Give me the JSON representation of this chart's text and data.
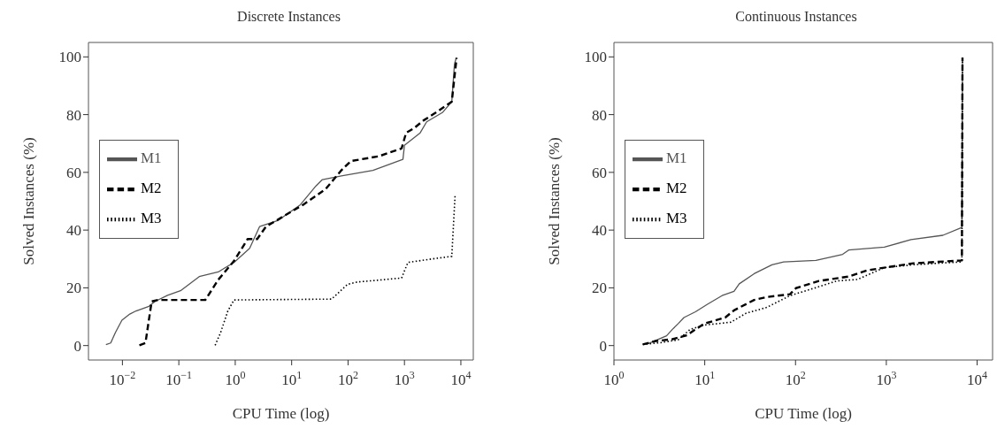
{
  "chart_data": [
    {
      "type": "line",
      "title": "Discrete Instances",
      "xlabel": "CPU Time (log)",
      "ylabel": "Solved Instances (%)",
      "log": "x",
      "grid": false,
      "legend": "left",
      "marker": "none",
      "xlim": [
        0.0025,
        16600
      ],
      "xticks": [
        {
          "value": 0.01,
          "label": "10$^{−2}$"
        },
        {
          "value": 0.1,
          "label": "10$^{−1}$"
        },
        {
          "value": 1,
          "label": "10$^{0}$"
        },
        {
          "value": 10,
          "label": "10$^{1}$"
        },
        {
          "value": 100,
          "label": "10$^{2}$"
        },
        {
          "value": 1000,
          "label": "10$^{3}$"
        },
        {
          "value": 10000,
          "label": "10$^{4}$"
        }
      ],
      "ylim": [
        -5,
        105
      ],
      "yticks": [
        0,
        20,
        40,
        60,
        80,
        100
      ],
      "series": [
        {
          "name": "M1",
          "color": "#555555",
          "line_style": "solid",
          "x": [
            0.0051,
            0.0062,
            0.0075,
            0.0098,
            0.0135,
            0.0174,
            0.0295,
            0.038,
            0.063,
            0.107,
            0.23,
            0.5,
            0.95,
            1.8,
            2.7,
            5.8,
            14.3,
            27,
            35,
            76,
            276,
            940,
            1000,
            1900,
            2470,
            4700,
            6900,
            7700,
            8300
          ],
          "values": [
            0.3,
            0.9,
            4.5,
            8.8,
            10.9,
            12,
            13.6,
            15.3,
            17.4,
            19,
            23.9,
            25.5,
            28.8,
            33.7,
            41.2,
            43.4,
            48.8,
            55.3,
            57.5,
            58.8,
            60.7,
            64.5,
            69.4,
            73.7,
            77.5,
            80.7,
            84.5,
            97.5,
            99.7
          ]
        },
        {
          "name": "M2",
          "color": "#000000",
          "line_style": "dashed",
          "x": [
            0.02,
            0.0256,
            0.033,
            0.043,
            0.295,
            0.5,
            0.95,
            1.66,
            2.45,
            3.5,
            16,
            40,
            76,
            112,
            355,
            890,
            1070,
            1480,
            2180,
            3600,
            6900,
            8400
          ],
          "values": [
            0.1,
            0.9,
            15.3,
            15.8,
            15.8,
            22.8,
            29.3,
            36.9,
            36.9,
            41.2,
            48.8,
            54.2,
            60.7,
            63.9,
            65.6,
            68.3,
            73.7,
            75.3,
            78,
            80.7,
            84.5,
            99.7
          ]
        },
        {
          "name": "M3",
          "color": "#000000",
          "line_style": "dotted",
          "x": [
            0.44,
            0.55,
            0.74,
            0.95,
            51,
            98,
            144,
            890,
            1150,
            2800,
            6900,
            7900
          ],
          "values": [
            0.1,
            4.5,
            12,
            15.8,
            16.1,
            21.2,
            22,
            23.4,
            28.8,
            29.9,
            30.9,
            52.1
          ]
        }
      ]
    },
    {
      "type": "line",
      "title": "Continuous Instances",
      "xlabel": "CPU Time (log)",
      "ylabel": "Solved Instances (%)",
      "log": "x",
      "grid": false,
      "legend": "left",
      "marker": "none",
      "xlim": [
        1,
        14800
      ],
      "xticks": [
        {
          "value": 1,
          "label": "10$^{0}$"
        },
        {
          "value": 10,
          "label": "10$^{1}$"
        },
        {
          "value": 100,
          "label": "10$^{2}$"
        },
        {
          "value": 1000,
          "label": "10$^{3}$"
        },
        {
          "value": 10000,
          "label": "10$^{4}$"
        }
      ],
      "ylim": [
        -5,
        105
      ],
      "yticks": [
        0,
        20,
        40,
        60,
        80,
        100
      ],
      "series": [
        {
          "name": "M1",
          "color": "#555555",
          "line_style": "solid",
          "x": [
            2.08,
            2.4,
            3.0,
            3.8,
            4.4,
            5.1,
            5.9,
            7.9,
            10.7,
            15.5,
            21,
            24,
            35,
            55,
            74,
            168,
            330,
            385,
            950,
            1870,
            4200,
            6800,
            6900
          ],
          "values": [
            0.4,
            0.7,
            2.0,
            3.4,
            5.6,
            7.6,
            9.7,
            11.7,
            14.3,
            17.3,
            18.8,
            21.4,
            24.9,
            28,
            29,
            29.5,
            31.6,
            33.1,
            34.1,
            36.7,
            38.2,
            40.9,
            99.8
          ]
        },
        {
          "name": "M2",
          "color": "#000000",
          "line_style": "dashed",
          "x": [
            2.08,
            2.8,
            4.4,
            6.4,
            7.9,
            9.9,
            16.8,
            21,
            35,
            48,
            87,
            101,
            181,
            385,
            605,
            950,
            1990,
            6800,
            6900
          ],
          "values": [
            0.4,
            1.5,
            2.2,
            3.6,
            5.6,
            7.6,
            9.7,
            12.2,
            15.8,
            16.8,
            17.8,
            19.9,
            22.4,
            23.9,
            26,
            27,
            28.5,
            29.5,
            99.8
          ]
        },
        {
          "name": "M3",
          "color": "#000000",
          "line_style": "dotted",
          "x": [
            2.08,
            3.25,
            5.1,
            6.9,
            9.9,
            19.5,
            28.5,
            48,
            87,
            181,
            286,
            480,
            950,
            1990,
            6800,
            6900
          ],
          "values": [
            0.4,
            1.0,
            2.0,
            5.6,
            7.1,
            8.1,
            11.2,
            13.2,
            17.3,
            20.4,
            22.4,
            22.9,
            27,
            28,
            29,
            99.8
          ]
        }
      ]
    }
  ]
}
